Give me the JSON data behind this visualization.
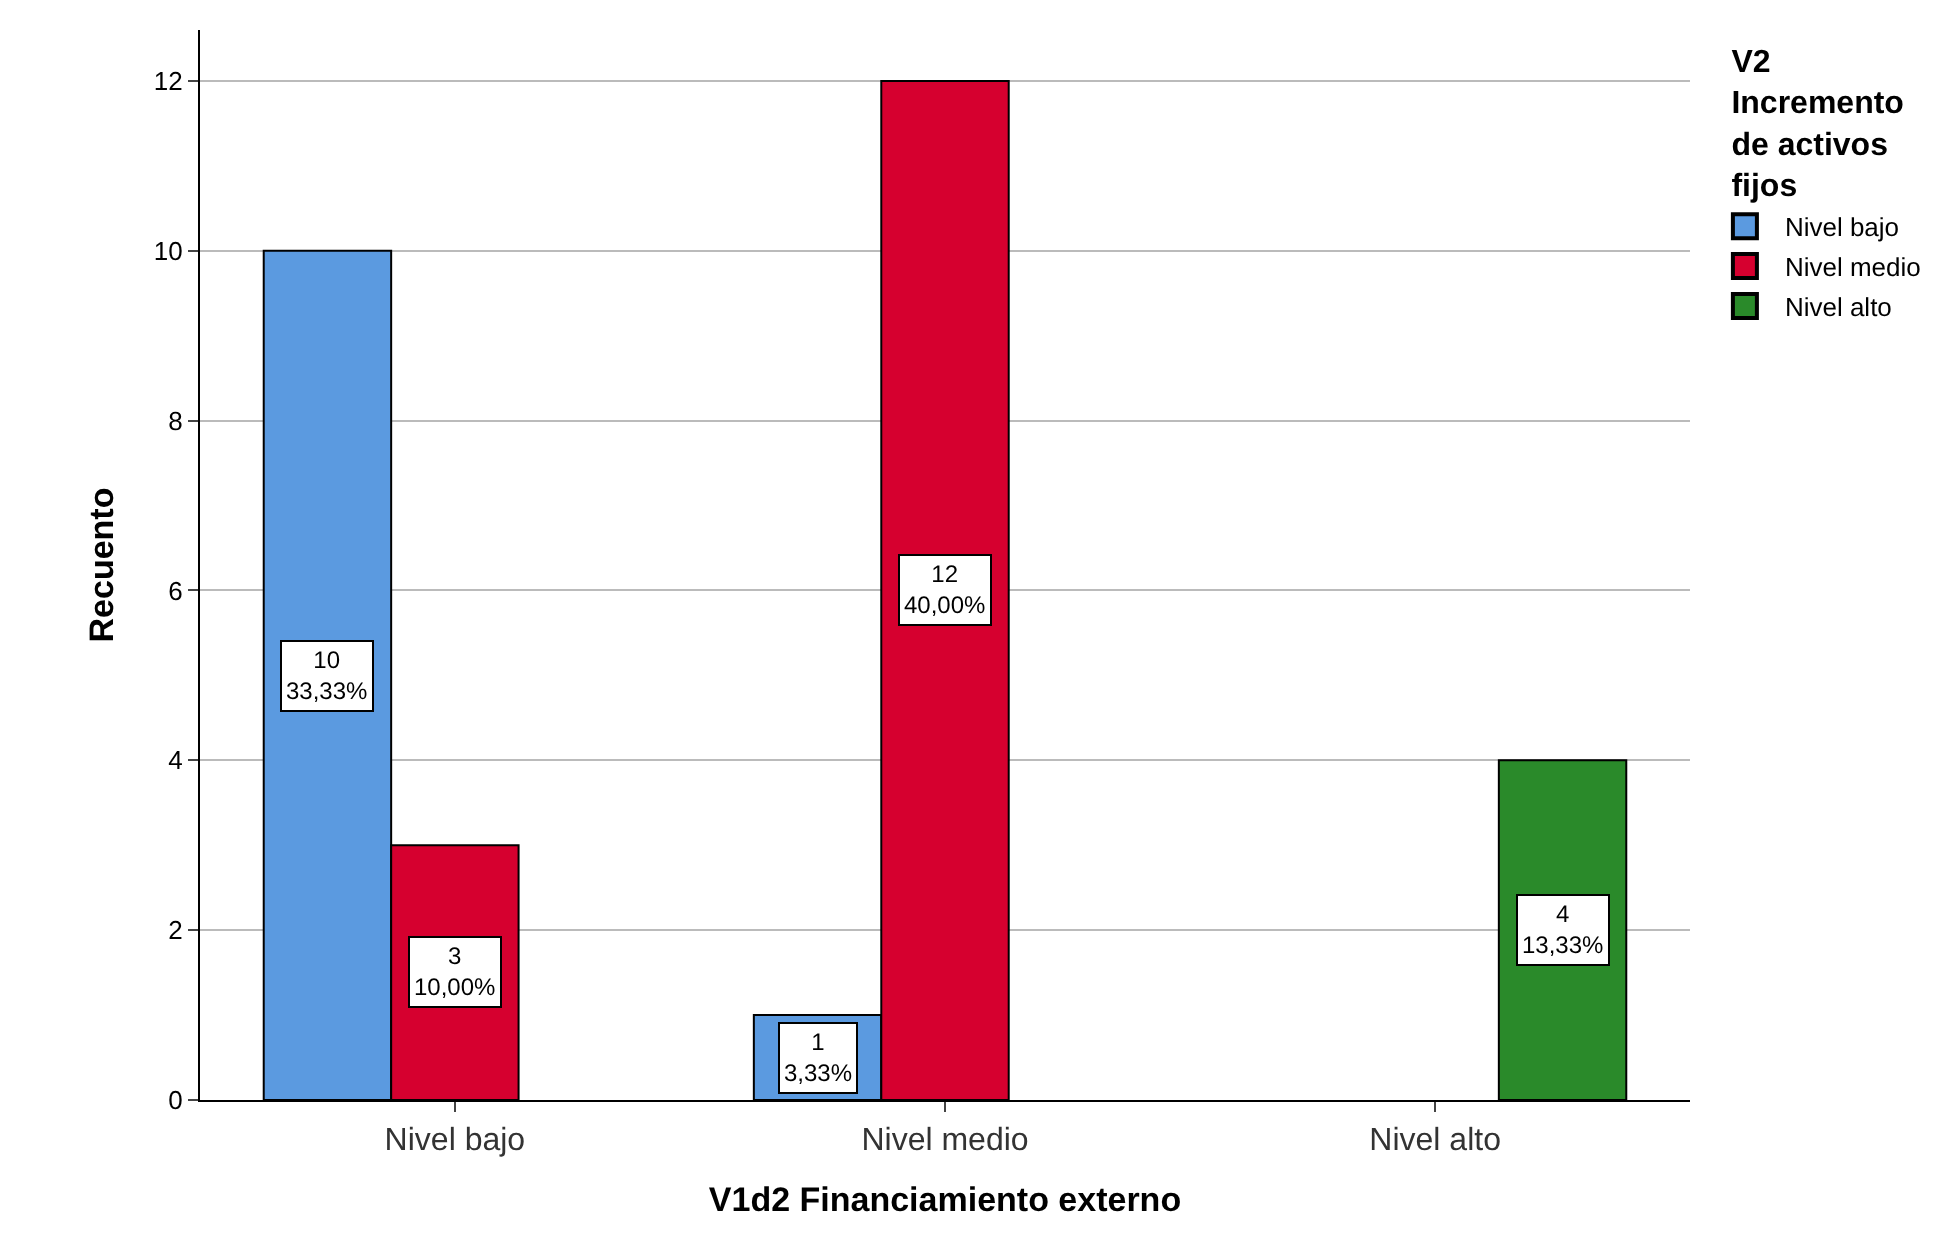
{
  "chart_data": {
    "type": "bar",
    "xlabel": "V1d2 Financiamiento externo",
    "ylabel": "Recuento",
    "legend_title": "V2 Incremento de activos fijos",
    "categories": [
      "Nivel bajo",
      "Nivel medio",
      "Nivel alto"
    ],
    "series": [
      {
        "name": "Nivel bajo",
        "color": "#5b9ae0",
        "values": [
          10,
          1,
          null
        ],
        "value_labels": [
          "10\n33,33%",
          "1\n3,33%",
          null
        ]
      },
      {
        "name": "Nivel medio",
        "color": "#d6002f",
        "values": [
          3,
          12,
          null
        ],
        "value_labels": [
          "3\n10,00%",
          "12\n40,00%",
          null
        ]
      },
      {
        "name": "Nivel alto",
        "color": "#2a8a2a",
        "values": [
          null,
          null,
          4
        ],
        "value_labels": [
          null,
          null,
          "4\n13,33%"
        ]
      }
    ],
    "ylim": [
      0,
      12.6
    ],
    "yticks": [
      0,
      2,
      4,
      6,
      8,
      10,
      12
    ],
    "grid": "y",
    "legend": "top right"
  }
}
